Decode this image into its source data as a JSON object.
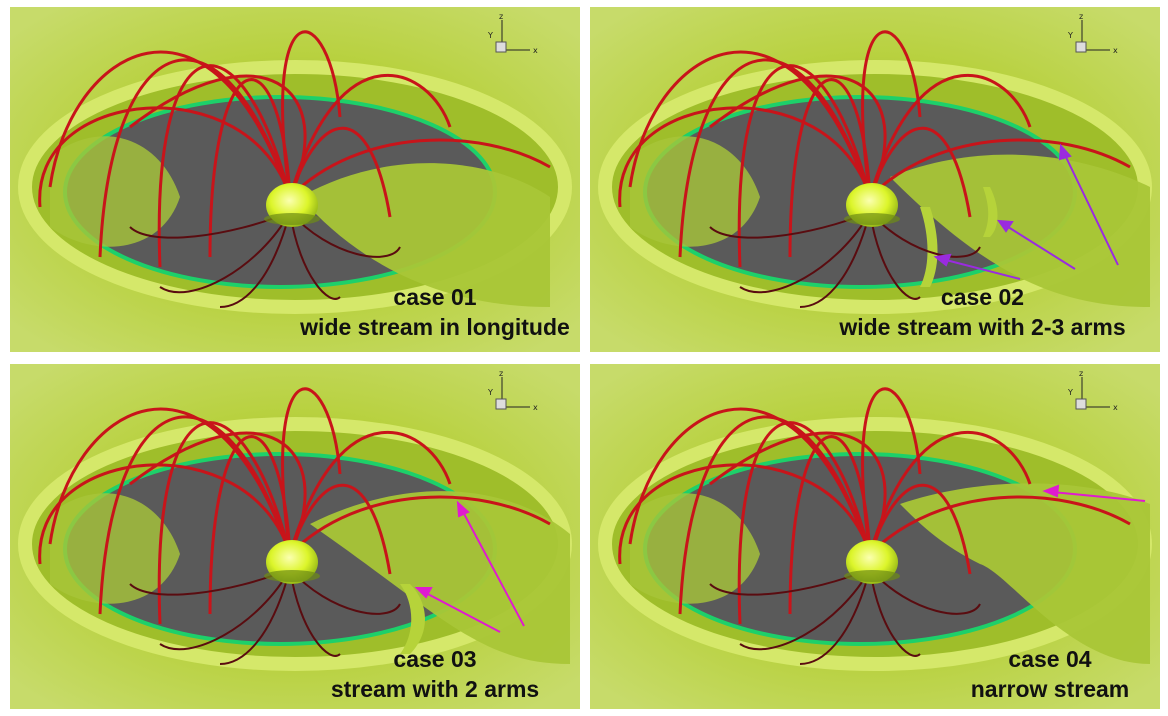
{
  "panels": [
    {
      "case_label": "case 01",
      "description": "wide stream in longitude"
    },
    {
      "case_label": "case 02",
      "description": "wide stream with 2-3 arms"
    },
    {
      "case_label": "case 03",
      "description": "stream with 2 arms"
    },
    {
      "case_label": "case 04",
      "description": "narrow stream"
    }
  ],
  "axis_triad": {
    "x": "x",
    "y": "Y",
    "z": "z"
  },
  "colors": {
    "field_lines": "#c8141a",
    "field_lines_dark": "#5a0c10",
    "isosurface": "#b9d23c",
    "isosurface_edge": "#1dd06a",
    "disk_shadow": "#555555",
    "star": "#e6ff3a",
    "arrow_magenta": "#e01ad0",
    "arrow_violet": "#9a2be0"
  }
}
